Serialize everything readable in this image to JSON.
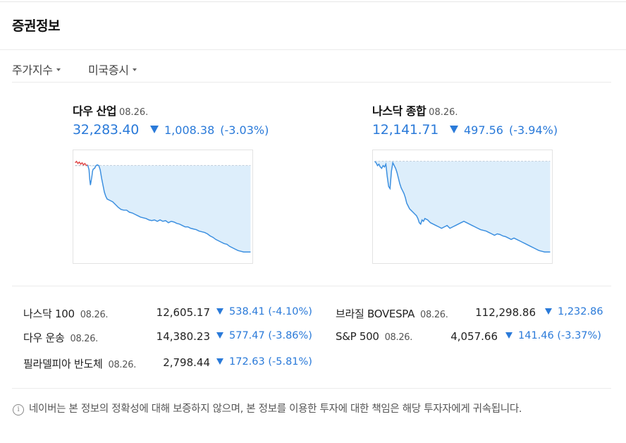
{
  "header": {
    "title": "증권정보"
  },
  "filters": [
    {
      "label": "주가지수"
    },
    {
      "label": "미국증시"
    }
  ],
  "main_indices": [
    {
      "name": "다우 산업",
      "date": "08.26.",
      "value": "32,283.40",
      "change": "1,008.38",
      "percent": "(-3.03%)",
      "direction": "down"
    },
    {
      "name": "나스닥 종합",
      "date": "08.26.",
      "value": "12,141.71",
      "change": "497.56",
      "percent": "(-3.94%)",
      "direction": "down"
    }
  ],
  "indices": [
    {
      "name": "나스닥 100",
      "date": "08.26.",
      "value": "12,605.17",
      "change": "538.41",
      "percent": "(-4.10%)"
    },
    {
      "name": "다우 운송",
      "date": "08.26.",
      "value": "14,380.23",
      "change": "577.47",
      "percent": "(-3.86%)"
    },
    {
      "name": "필라델피아 반도체",
      "date": "08.26.",
      "value": "2,798.44",
      "change": "172.63",
      "percent": "(-5.81%)"
    },
    {
      "name": "브라질 BOVESPA",
      "date": "08.26.",
      "value": "112,298.86",
      "change": "1,232.86",
      "percent": ""
    },
    {
      "name": "S&P 500",
      "date": "08.26.",
      "value": "4,057.66",
      "change": "141.46",
      "percent": "(-3.37%)"
    }
  ],
  "notice": "네이버는 본 정보의 정확성에 대해 보증하지 않으며, 본 정보를 이용한 투자에 대한 책임은 해당 투자자에게 귀속됩니다.",
  "colors": {
    "down": "#2a7ad9",
    "up": "#e03b3b",
    "chart_fill": "#ddeefb"
  },
  "icons": {
    "info": "info-circle-icon",
    "dropdown": "caret-down-icon",
    "down": "triangle-down-icon"
  }
}
